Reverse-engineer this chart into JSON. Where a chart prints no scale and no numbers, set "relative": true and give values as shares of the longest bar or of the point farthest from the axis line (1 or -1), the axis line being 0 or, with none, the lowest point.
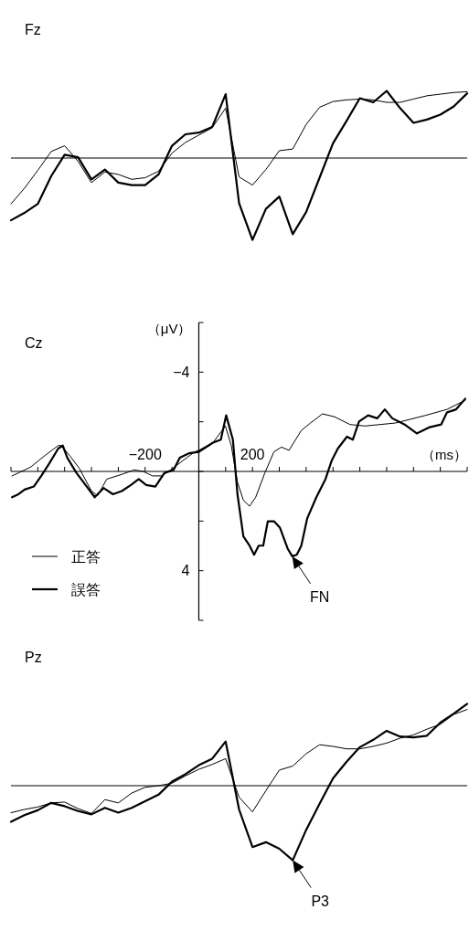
{
  "chart_data": [
    {
      "type": "line",
      "title": "Fz",
      "relative": true,
      "categories": [
        null,
        null,
        null,
        null,
        null,
        null,
        null,
        null,
        null,
        null,
        null,
        null,
        null,
        null,
        null,
        null,
        null,
        null,
        null,
        null,
        null,
        null,
        null,
        null,
        null,
        null,
        null,
        null,
        null,
        null,
        null,
        null,
        null,
        null,
        null
      ],
      "series": [
        {
          "color": "#000000",
          "values": [
            -0.56,
            -0.37,
            -0.15,
            0.08,
            0.15,
            -0.04,
            -0.3,
            -0.17,
            -0.2,
            -0.26,
            -0.24,
            -0.16,
            0.06,
            0.19,
            0.28,
            0.37,
            0.61,
            -0.23,
            -0.33,
            -0.14,
            0.09,
            0.11,
            0.41,
            0.62,
            0.69,
            0.71,
            0.72,
            0.71,
            0.68,
            0.68,
            0.72,
            0.76,
            0.78,
            0.8,
            0.81
          ]
        },
        {
          "color": "#000000",
          "values": [
            -0.76,
            -0.67,
            -0.56,
            -0.22,
            0.04,
            0.01,
            -0.26,
            -0.14,
            -0.3,
            -0.33,
            -0.33,
            -0.2,
            0.15,
            0.29,
            0.31,
            0.38,
            0.78,
            -0.55,
            -1,
            -0.62,
            -0.47,
            -0.93,
            -0.66,
            -0.24,
            0.18,
            0.45,
            0.73,
            0.68,
            0.82,
            0.61,
            0.43,
            0.47,
            0.53,
            0.63,
            0.79
          ]
        }
      ]
    },
    {
      "type": "line",
      "title": "Cz",
      "xlabel": "（ms）",
      "ylabel": "（μV）",
      "xlim": [
        -700,
        1000
      ],
      "ylim": [
        6,
        -6
      ],
      "legend": "bottom left",
      "xticks": [
        {
          "value": -700,
          "label": null
        },
        {
          "value": -600,
          "label": null
        },
        {
          "value": -500,
          "label": null
        },
        {
          "value": -400,
          "label": null
        },
        {
          "value": -300,
          "label": null
        },
        {
          "value": -200,
          "label": "−200"
        },
        {
          "value": -100,
          "label": null
        },
        {
          "value": 0,
          "label": null
        },
        {
          "value": 100,
          "label": null
        },
        200,
        {
          "value": 300,
          "label": null
        },
        {
          "value": 400,
          "label": null
        },
        {
          "value": 500,
          "label": null
        },
        {
          "value": 600,
          "label": null
        },
        {
          "value": 700,
          "label": null
        },
        {
          "value": 800,
          "label": null
        },
        {
          "value": 900,
          "label": null
        },
        {
          "value": 1000,
          "label": null
        }
      ],
      "yticks": [
        {
          "value": -6,
          "label": null
        },
        {
          "value": -4,
          "label": "−4"
        },
        {
          "value": -2,
          "label": null
        },
        {
          "value": 0,
          "label": null
        },
        {
          "value": 2,
          "label": null
        },
        4,
        {
          "value": 6,
          "label": null
        }
      ],
      "annotations": [
        {
          "text": "FN",
          "x": 348,
          "y": 3.42
        }
      ],
      "series": [
        {
          "name": "正答",
          "color": "#000000",
          "x": [
            -696,
            -672,
            -626,
            -570,
            -524,
            -513,
            -479,
            -445,
            -400,
            -377,
            -343,
            -287,
            -241,
            -207,
            -173,
            -139,
            -105,
            -60,
            -15,
            0,
            53,
            99,
            121,
            144,
            166,
            189,
            212,
            246,
            280,
            308,
            336,
            382,
            416,
            461,
            506,
            563,
            619,
            733,
            846,
            925,
            993
          ],
          "values": [
            0.18,
            0.06,
            -0.18,
            -0.67,
            -1.04,
            -1.04,
            -0.61,
            -0.12,
            0.79,
            0.98,
            0.31,
            0.12,
            -0.06,
            0,
            0.18,
            0.18,
            -0.06,
            -0.43,
            -0.79,
            -0.85,
            -1.16,
            -1.83,
            -1.04,
            0.43,
            1.16,
            1.4,
            1.04,
            0.06,
            -0.79,
            -0.98,
            -0.85,
            -1.65,
            -1.95,
            -2.32,
            -2.2,
            -1.89,
            -1.83,
            -1.95,
            -2.26,
            -2.5,
            -2.87
          ]
        },
        {
          "name": "誤答",
          "color": "#000000",
          "x": [
            -696,
            -672,
            -649,
            -615,
            -587,
            -558,
            -524,
            -507,
            -490,
            -456,
            -422,
            -388,
            -355,
            -320,
            -287,
            -253,
            -224,
            -196,
            -162,
            -128,
            -94,
            -71,
            -37,
            0,
            53,
            82,
            102,
            127,
            144,
            166,
            189,
            206,
            223,
            240,
            257,
            280,
            302,
            331,
            348,
            365,
            382,
            404,
            438,
            472,
            495,
            518,
            552,
            574,
            597,
            631,
            665,
            693,
            721,
            767,
            812,
            857,
            903,
            925,
            959,
            993
          ],
          "values": [
            1.04,
            0.92,
            0.73,
            0.61,
            0.18,
            -0.31,
            -0.92,
            -1.04,
            -0.55,
            0.06,
            0.55,
            1.04,
            0.67,
            0.92,
            0.79,
            0.55,
            0.31,
            0.55,
            0.61,
            0.06,
            -0.06,
            -0.55,
            -0.73,
            -0.79,
            -1.16,
            -1.28,
            -2.26,
            -1.28,
            0.92,
            2.62,
            2.99,
            3.36,
            2.99,
            2.99,
            2.01,
            2.01,
            2.26,
            3.11,
            3.42,
            3.36,
            2.99,
            1.89,
            1.04,
            0.31,
            -0.43,
            -0.92,
            -1.4,
            -1.28,
            -2.01,
            -2.26,
            -2.14,
            -2.5,
            -2.14,
            -1.89,
            -1.53,
            -1.77,
            -1.89,
            -2.38,
            -2.5,
            -2.93
          ]
        }
      ]
    },
    {
      "type": "line",
      "title": "Pz",
      "relative": true,
      "categories": [
        null,
        null,
        null,
        null,
        null,
        null,
        null,
        null,
        null,
        null,
        null,
        null,
        null,
        null,
        null,
        null,
        null,
        null,
        null,
        null,
        null,
        null,
        null,
        null,
        null,
        null,
        null,
        null,
        null,
        null,
        null,
        null,
        null,
        null,
        null
      ],
      "annotations": [
        "P3"
      ],
      "series": [
        {
          "color": "#000000",
          "values": [
            -0.33,
            -0.29,
            -0.26,
            -0.21,
            -0.2,
            -0.28,
            -0.34,
            -0.17,
            -0.21,
            -0.09,
            -0.02,
            0,
            0.03,
            0.12,
            0.2,
            0.26,
            0.33,
            -0.14,
            -0.32,
            -0.06,
            0.19,
            0.24,
            0.39,
            0.5,
            0.48,
            0.45,
            0.45,
            0.48,
            0.52,
            0.58,
            0.62,
            0.69,
            0.75,
            0.87,
            0.93
          ]
        },
        {
          "color": "#000000",
          "values": [
            -0.44,
            -0.36,
            -0.3,
            -0.21,
            -0.25,
            -0.31,
            -0.35,
            -0.27,
            -0.33,
            -0.27,
            -0.19,
            -0.11,
            0.05,
            0.14,
            0.25,
            0.33,
            0.54,
            -0.29,
            -0.75,
            -0.69,
            -0.77,
            -0.91,
            -0.54,
            -0.22,
            0.09,
            0.29,
            0.47,
            0.56,
            0.67,
            0.6,
            0.59,
            0.61,
            0.77,
            0.88,
            1
          ]
        }
      ]
    }
  ]
}
